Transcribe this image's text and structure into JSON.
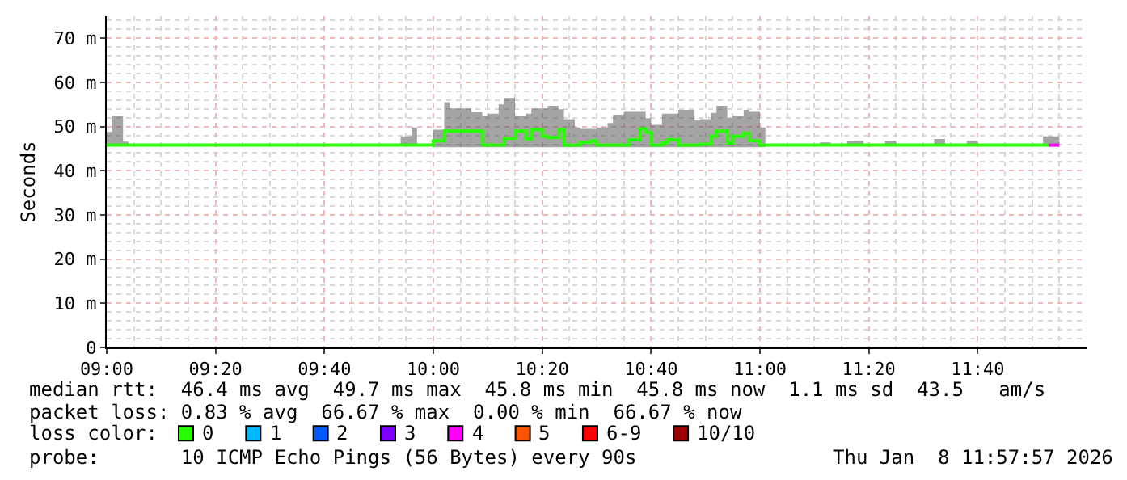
{
  "chart_data": {
    "type": "step",
    "ylabel": "Seconds",
    "xlim": [
      "2026-01-08T09:00",
      "2026-01-08T12:00"
    ],
    "xticks": [
      {
        "value": "2026-01-08T09:00",
        "label": "09:00"
      },
      {
        "value": "2026-01-08T09:20",
        "label": "09:20"
      },
      {
        "value": "2026-01-08T09:40",
        "label": "09:40"
      },
      {
        "value": "2026-01-08T10:00",
        "label": "10:00"
      },
      {
        "value": "2026-01-08T10:20",
        "label": "10:20"
      },
      {
        "value": "2026-01-08T10:40",
        "label": "10:40"
      },
      {
        "value": "2026-01-08T11:00",
        "label": "11:00"
      },
      {
        "value": "2026-01-08T11:20",
        "label": "11:20"
      },
      {
        "value": "2026-01-08T11:40",
        "label": "11:40"
      }
    ],
    "ylim": [
      0,
      75
    ],
    "yticks": [
      0,
      {
        "value": 10,
        "label": "10 m"
      },
      {
        "value": 20,
        "label": "20 m"
      },
      {
        "value": 30,
        "label": "30 m"
      },
      {
        "value": 40,
        "label": "40 m"
      },
      {
        "value": 50,
        "label": "50 m"
      },
      {
        "value": 60,
        "label": "60 m"
      },
      {
        "value": 70,
        "label": "70 m"
      }
    ],
    "grid": true,
    "legend": "bottom",
    "legend_title": "loss color:",
    "marker": "none",
    "line_style": "solid",
    "series": [
      {
        "name": "0",
        "color": "#26ff00",
        "x": [
          "2026-01-08T09:00",
          "2026-01-08T09:01",
          "2026-01-08T09:03",
          "2026-01-08T09:04",
          "2026-01-08T09:54",
          "2026-01-08T09:56",
          "2026-01-08T09:57",
          "2026-01-08T10:00",
          "2026-01-08T10:02",
          "2026-01-08T10:03",
          "2026-01-08T10:07",
          "2026-01-08T10:09",
          "2026-01-08T10:10",
          "2026-01-08T10:12",
          "2026-01-08T10:13",
          "2026-01-08T10:15",
          "2026-01-08T10:17",
          "2026-01-08T10:18",
          "2026-01-08T10:20",
          "2026-01-08T10:21",
          "2026-01-08T10:23",
          "2026-01-08T10:24",
          "2026-01-08T10:26",
          "2026-01-08T10:27",
          "2026-01-08T10:29",
          "2026-01-08T10:30",
          "2026-01-08T10:32",
          "2026-01-08T10:33",
          "2026-01-08T10:35",
          "2026-01-08T10:36",
          "2026-01-08T10:38",
          "2026-01-08T10:39",
          "2026-01-08T10:40",
          "2026-01-08T10:42",
          "2026-01-08T10:43",
          "2026-01-08T10:45",
          "2026-01-08T10:48",
          "2026-01-08T10:49",
          "2026-01-08T10:51",
          "2026-01-08T10:52",
          "2026-01-08T10:54",
          "2026-01-08T10:55",
          "2026-01-08T10:57",
          "2026-01-08T10:58",
          "2026-01-08T11:00",
          "2026-01-08T11:01",
          "2026-01-08T11:11",
          "2026-01-08T11:13",
          "2026-01-08T11:16",
          "2026-01-08T11:19",
          "2026-01-08T11:23",
          "2026-01-08T11:25",
          "2026-01-08T11:32",
          "2026-01-08T11:34",
          "2026-01-08T11:38",
          "2026-01-08T11:40",
          "2026-01-08T11:52",
          "2026-01-08T11:53",
          "2026-01-08T11:55"
        ],
        "values": [
          45.8,
          45.8,
          45.8,
          45.8,
          45.8,
          45.8,
          45.8,
          46.8,
          49,
          49,
          49,
          45.8,
          45.8,
          45.8,
          47.4,
          49,
          47.2,
          49.3,
          47.8,
          47.5,
          49.3,
          45.8,
          45.8,
          46.4,
          46.8,
          45.8,
          45.8,
          45.8,
          45.8,
          47,
          49.5,
          48.7,
          45.8,
          46.3,
          47,
          45.8,
          45.8,
          46,
          47.8,
          49,
          46.3,
          47.8,
          48.5,
          46.8,
          45.8,
          45.8,
          45.8,
          45.8,
          45.8,
          45.8,
          45.8,
          45.8,
          45.8,
          45.8,
          45.8,
          45.8,
          45.8,
          45.8,
          null
        ],
        "lower": [
          45.8,
          45.8,
          45.8,
          45.8,
          45.8,
          45.8,
          45.8,
          45.3,
          45.3,
          45.3,
          45.3,
          45.3,
          45.3,
          45.3,
          45.3,
          45.3,
          45.3,
          45.3,
          45.3,
          45.3,
          45.3,
          45.3,
          45.3,
          45.3,
          45.3,
          45.3,
          45.3,
          45.3,
          45.3,
          45.3,
          45.3,
          45.3,
          45.3,
          45.3,
          45.3,
          45.3,
          45.3,
          45.3,
          45.3,
          45.3,
          45.3,
          45.3,
          45.3,
          45.3,
          45.3,
          45.8,
          45.8,
          45.8,
          45.8,
          45.8,
          45.8,
          45.8,
          45.8,
          45.8,
          45.8,
          45.8,
          45.8,
          45.8,
          45.8
        ],
        "upper": [
          48.8,
          52.5,
          46.6,
          45.8,
          47.8,
          49.8,
          45.8,
          49.3,
          55.5,
          54.1,
          53.3,
          52.3,
          52.9,
          55,
          56.5,
          52.3,
          52.9,
          54.1,
          54.1,
          54.7,
          53.9,
          51.7,
          49.8,
          49.5,
          49.5,
          49.8,
          50.8,
          52.7,
          53.5,
          53.5,
          53.5,
          51.9,
          50.4,
          52.9,
          52.9,
          53.8,
          51.4,
          51.7,
          53.1,
          54.7,
          51.9,
          52.5,
          53.8,
          53.5,
          49.8,
          45.8,
          46.4,
          45.8,
          46.8,
          45.8,
          46.8,
          45.8,
          47.2,
          45.8,
          46.8,
          45.8,
          47.8,
          47.8,
          47.8
        ]
      },
      {
        "name": "1",
        "color": "#00b8ff"
      },
      {
        "name": "2",
        "color": "#0059ff"
      },
      {
        "name": "3",
        "color": "#7e00ff"
      },
      {
        "name": "4",
        "color": "#ff00ff",
        "x": [
          "2026-01-08T11:53",
          "2026-01-08T11:55"
        ],
        "values": [
          45.8,
          45.8
        ]
      },
      {
        "name": "5",
        "color": "#ff5500"
      },
      {
        "name": "6-9",
        "color": "#ff0000"
      },
      {
        "name": "10/10",
        "color": "#a10000"
      }
    ],
    "annotations": [
      "median rtt:  46.4 ms avg  49.7 ms max  45.8 ms min  45.8 ms now  1.1 ms sd  43.5   am/s",
      "packet loss: 0.83 % avg  66.67 % max  0.00 % min  66.67 % now",
      "probe:       10 ICMP Echo Pings (56 Bytes) every 90s",
      "Thu Jan  8 11:57:57 2026"
    ]
  }
}
